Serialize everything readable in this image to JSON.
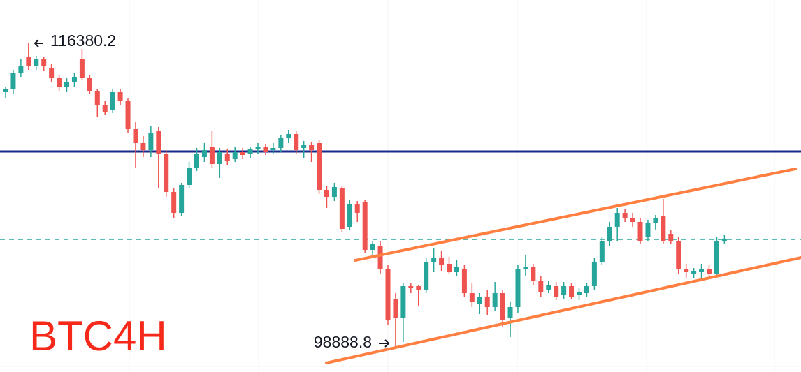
{
  "chart_data": {
    "type": "candlestick",
    "title": "BTC4H",
    "ylim": [
      97540,
      118860
    ],
    "up_color": "#26a69a",
    "down_color": "#ef5350",
    "open": [
      113580,
      113740,
      114660,
      115580,
      115060,
      115460,
      114980,
      114380,
      113860,
      114140,
      115460,
      114380,
      113660,
      112860,
      112540,
      113580,
      113060,
      111460,
      110660,
      110260,
      111340,
      110060,
      107860,
      106660,
      108260,
      109260,
      109860,
      110460,
      109460,
      110060,
      109740,
      110140,
      110060,
      110300,
      110460,
      110260,
      110380,
      110940,
      111180,
      110380,
      110540,
      110660,
      107980,
      107580,
      108060,
      105860,
      107180,
      107260,
      104540,
      104780,
      103460,
      101740,
      100660,
      102460,
      102460,
      102260,
      103860,
      104060,
      103740,
      103260,
      103460,
      102060,
      101460,
      101860,
      101260,
      102060,
      100660,
      101260,
      103460,
      103580,
      102780,
      102260,
      102460,
      101980,
      102460,
      101980,
      102060,
      102460,
      103860,
      105060,
      105860,
      106660,
      106380,
      106140,
      105260,
      106060,
      106460,
      105460,
      105060,
      103460,
      103180,
      103260,
      103460,
      103180,
      105060
    ],
    "high": [
      113900,
      114860,
      115460,
      116380.2,
      115660,
      115580,
      115180,
      114540,
      114380,
      114700,
      116060,
      114540,
      113740,
      113060,
      113740,
      113740,
      113260,
      111860,
      111060,
      111660,
      111580,
      110260,
      108060,
      108380,
      109580,
      110380,
      110660,
      111340,
      110380,
      110300,
      110460,
      110380,
      110460,
      110660,
      110620,
      110660,
      111100,
      111420,
      111340,
      110780,
      110700,
      110860,
      108220,
      108380,
      108220,
      107420,
      107340,
      107420,
      105060,
      105020,
      103660,
      102060,
      102620,
      102660,
      102540,
      104060,
      104620,
      104460,
      104140,
      103980,
      103660,
      102660,
      102060,
      102260,
      102700,
      102260,
      101580,
      103660,
      104220,
      103740,
      103020,
      102780,
      102700,
      102700,
      102660,
      102380,
      102660,
      104060,
      105260,
      106140,
      106940,
      106860,
      106660,
      106380,
      106260,
      106540,
      107460,
      105660,
      105260,
      103740,
      103500,
      103740,
      103660,
      105260,
      105420
    ],
    "low": [
      113260,
      113460,
      114460,
      114860,
      114860,
      114780,
      114140,
      113660,
      113580,
      113900,
      114260,
      113460,
      112140,
      112260,
      112380,
      112860,
      111260,
      109260,
      109860,
      109860,
      108060,
      107580,
      106380,
      106460,
      108060,
      109060,
      109580,
      109260,
      108660,
      109420,
      109580,
      109740,
      109820,
      110060,
      109980,
      110060,
      110140,
      110660,
      110060,
      109820,
      109580,
      107740,
      106940,
      107340,
      105580,
      105660,
      106140,
      104380,
      104140,
      103180,
      100260,
      98888.8,
      99260,
      102060,
      101340,
      102060,
      103260,
      103340,
      103180,
      103060,
      101860,
      101260,
      100860,
      100780,
      101060,
      100140,
      99540,
      100940,
      103060,
      102540,
      101860,
      102060,
      101660,
      101740,
      101740,
      101660,
      101820,
      102260,
      103660,
      104780,
      105060,
      106140,
      105860,
      104860,
      105060,
      105660,
      104860,
      104860,
      103180,
      102940,
      102940,
      102860,
      103020,
      103060,
      104860
    ],
    "close": [
      113740,
      114660,
      115060,
      115060,
      115460,
      115060,
      114380,
      113860,
      114140,
      114460,
      114380,
      113660,
      112860,
      112460,
      113580,
      113060,
      111460,
      110660,
      110260,
      111260,
      110060,
      107860,
      106660,
      108260,
      109260,
      110060,
      110260,
      109460,
      110140,
      109660,
      110140,
      109980,
      110300,
      110460,
      110140,
      110380,
      110940,
      111180,
      110260,
      110540,
      110260,
      107980,
      107580,
      108140,
      105740,
      107180,
      106660,
      104540,
      104860,
      103460,
      100540,
      100660,
      102460,
      102380,
      102260,
      103860,
      104060,
      103660,
      103260,
      103580,
      102060,
      101580,
      101860,
      101260,
      102060,
      100540,
      101260,
      103460,
      103580,
      102780,
      102140,
      102540,
      101860,
      102460,
      101860,
      102140,
      102460,
      103860,
      105060,
      105860,
      106660,
      106380,
      106140,
      105060,
      106060,
      106380,
      105060,
      105060,
      103460,
      103260,
      103340,
      103460,
      103180,
      105060,
      105180
    ],
    "hlines": [
      {
        "value": 110180,
        "color": "#1a2a8c",
        "dashed": false
      },
      {
        "value": 105140,
        "color": "#26a69a",
        "dashed": true
      }
    ]
  }
}
